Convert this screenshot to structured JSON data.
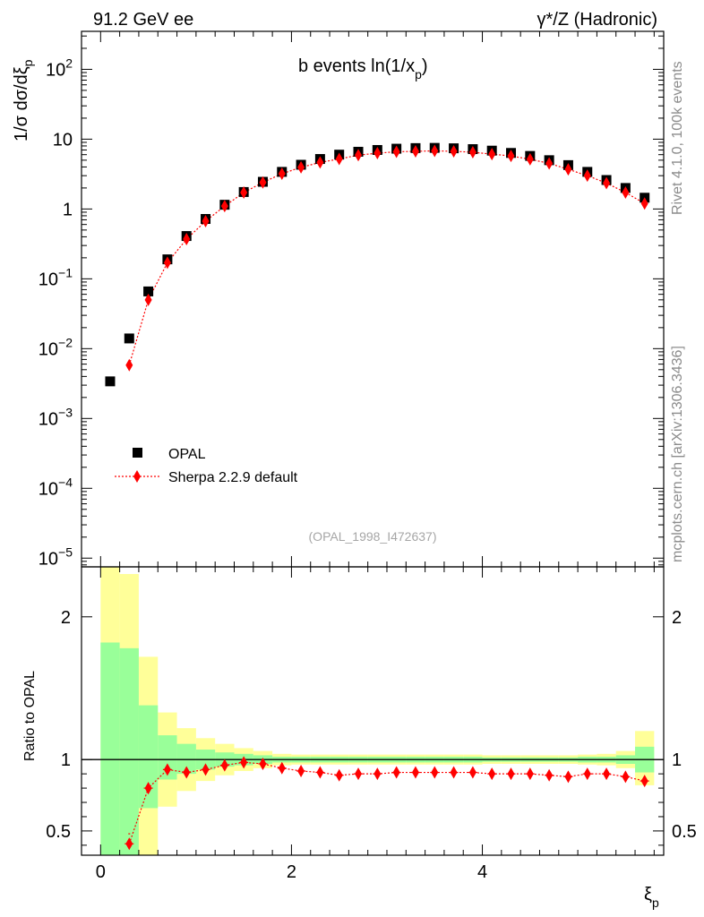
{
  "header": {
    "left": "91.2 GeV ee",
    "right": "γ*/Z (Hadronic)"
  },
  "side_labels": {
    "rivet": "Rivet 4.1.0,  100k events",
    "mcplots": "mcplots.cern.ch [arXiv:1306.3436]"
  },
  "chart_data": {
    "type": "scatter",
    "title": "b events ln(1/x_p)",
    "title_main": "b events ln(1/x",
    "title_sub": "p",
    "title_close": ")",
    "analysis_tag": "(OPAL_1998_I472637)",
    "xlabel": "ξp",
    "xlabel_main": "ξ",
    "xlabel_sub": "p",
    "ylabel": "1/σ  dσ/dξp",
    "ylabel_main": "1/σ   dσ/dξ",
    "ylabel_sub": "p",
    "ratio_ylabel": "Ratio to OPAL",
    "xlim": [
      -0.2,
      5.9
    ],
    "ylim": [
      7.5e-06,
      350
    ],
    "yscale": "log",
    "ratio_ylim": [
      0.33,
      2.35
    ],
    "x_ticks": [
      0,
      2,
      4
    ],
    "x_tick_labels": [
      "0",
      "2",
      "4"
    ],
    "y_tick_labels": [
      {
        "value": 100,
        "base": "10",
        "exp": "2"
      },
      {
        "value": 10,
        "base": "10",
        "exp": ""
      },
      {
        "value": 1,
        "base": "1",
        "exp": ""
      },
      {
        "value": 0.1,
        "base": "10",
        "exp": "−1"
      },
      {
        "value": 0.01,
        "base": "10",
        "exp": "−2"
      },
      {
        "value": 0.001,
        "base": "10",
        "exp": "−3"
      },
      {
        "value": 0.0001,
        "base": "10",
        "exp": "−4"
      },
      {
        "value": 1e-05,
        "base": "10",
        "exp": "−5"
      }
    ],
    "ratio_ticks": [
      0.5,
      1,
      2
    ],
    "ratio_tick_labels": [
      "0.5",
      "1",
      "2"
    ],
    "x": [
      0.1,
      0.3,
      0.5,
      0.7,
      0.9,
      1.1,
      1.3,
      1.5,
      1.7,
      1.9,
      2.1,
      2.3,
      2.5,
      2.7,
      2.9,
      3.1,
      3.3,
      3.5,
      3.7,
      3.9,
      4.1,
      4.3,
      4.5,
      4.7,
      4.9,
      5.1,
      5.3,
      5.5,
      5.7
    ],
    "series": [
      {
        "name": "OPAL",
        "color": "#000000",
        "marker": "square",
        "values": [
          0.0034,
          0.014,
          0.066,
          0.19,
          0.41,
          0.72,
          1.15,
          1.75,
          2.45,
          3.4,
          4.3,
          5.2,
          6.0,
          6.6,
          7.0,
          7.3,
          7.45,
          7.5,
          7.4,
          7.2,
          6.85,
          6.35,
          5.75,
          5.0,
          4.25,
          3.4,
          2.6,
          2.0,
          1.45
        ]
      },
      {
        "name": "Sherpa 2.2.9 default",
        "color": "#ff0000",
        "marker": "diamond",
        "linestyle": "dotted",
        "values": [
          null,
          0.0058,
          0.05,
          0.17,
          0.37,
          0.67,
          1.1,
          1.72,
          2.4,
          3.2,
          3.95,
          4.65,
          5.2,
          5.9,
          6.3,
          6.6,
          6.7,
          6.8,
          6.7,
          6.5,
          6.1,
          5.75,
          5.15,
          4.5,
          3.7,
          3.0,
          2.35,
          1.72,
          1.2
        ]
      }
    ],
    "ratio": [
      null,
      0.41,
      0.8,
      0.93,
      0.91,
      0.93,
      0.96,
      0.98,
      0.97,
      0.94,
      0.92,
      0.91,
      0.89,
      0.9,
      0.9,
      0.91,
      0.91,
      0.91,
      0.91,
      0.91,
      0.9,
      0.9,
      0.9,
      0.89,
      0.88,
      0.9,
      0.9,
      0.88,
      0.85
    ],
    "ratio_lower_tail": [
      0.48,
      0.48
    ],
    "uncertainty_bands": {
      "edges": [
        0.0,
        0.2,
        0.4,
        0.6,
        0.8,
        1.0,
        1.2,
        1.4,
        1.6,
        1.8,
        2.0,
        2.2,
        2.4,
        2.6,
        2.8,
        3.0,
        3.2,
        3.4,
        3.6,
        3.8,
        4.0,
        4.2,
        4.4,
        4.6,
        4.8,
        5.0,
        5.2,
        5.4,
        5.6,
        5.8
      ],
      "stat": {
        "color": "#99ff99",
        "lo": [
          0.33,
          0.33,
          0.66,
          0.86,
          0.9,
          0.93,
          0.95,
          0.96,
          0.97,
          0.98,
          0.98,
          0.98,
          0.98,
          0.98,
          0.98,
          0.98,
          0.98,
          0.98,
          0.98,
          0.98,
          0.985,
          0.985,
          0.985,
          0.985,
          0.985,
          0.98,
          0.98,
          0.97,
          0.91
        ],
        "hi": [
          1.82,
          1.78,
          1.38,
          1.17,
          1.11,
          1.07,
          1.05,
          1.04,
          1.03,
          1.02,
          1.02,
          1.02,
          1.02,
          1.02,
          1.02,
          1.02,
          1.02,
          1.02,
          1.02,
          1.02,
          1.015,
          1.015,
          1.015,
          1.015,
          1.015,
          1.02,
          1.02,
          1.03,
          1.09
        ]
      },
      "total": {
        "color": "#ffff99",
        "lo": [
          0.33,
          0.33,
          0.33,
          0.67,
          0.78,
          0.85,
          0.89,
          0.92,
          0.94,
          0.96,
          0.965,
          0.965,
          0.965,
          0.965,
          0.965,
          0.965,
          0.965,
          0.965,
          0.965,
          0.965,
          0.97,
          0.97,
          0.97,
          0.97,
          0.97,
          0.965,
          0.96,
          0.94,
          0.82
        ],
        "hi": [
          2.35,
          2.3,
          1.72,
          1.33,
          1.22,
          1.15,
          1.11,
          1.08,
          1.06,
          1.04,
          1.035,
          1.035,
          1.035,
          1.035,
          1.035,
          1.035,
          1.035,
          1.035,
          1.035,
          1.035,
          1.03,
          1.03,
          1.03,
          1.03,
          1.03,
          1.035,
          1.04,
          1.06,
          1.2
        ]
      }
    },
    "legend": [
      {
        "label": "OPAL",
        "marker": "square",
        "color": "#000000"
      },
      {
        "label": "Sherpa 2.2.9 default",
        "marker": "diamond",
        "color": "#ff0000"
      }
    ],
    "legend_position": "lower-left"
  }
}
